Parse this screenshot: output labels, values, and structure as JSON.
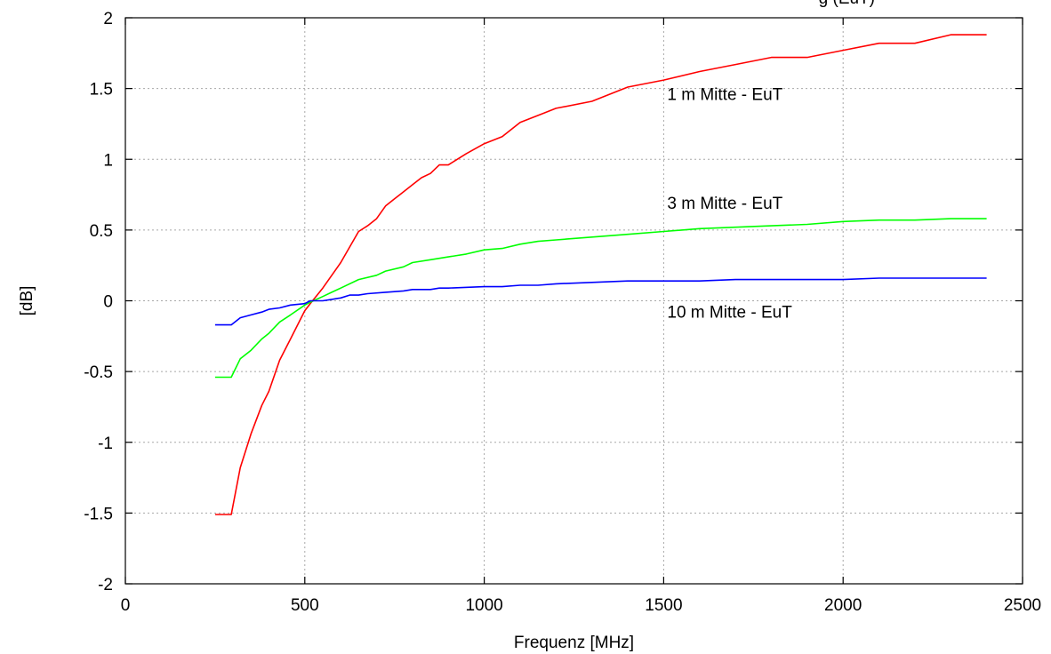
{
  "chart_data": {
    "type": "line",
    "title": "",
    "top_annotation": "g (EuT)",
    "xlabel": "Frequenz [MHz]",
    "ylabel": "[dB]",
    "xlim": [
      0,
      2500
    ],
    "ylim": [
      -2,
      2
    ],
    "x_ticks": [
      0,
      500,
      1000,
      1500,
      2000,
      2500
    ],
    "x_tick_labels": [
      "0",
      "500",
      "1000",
      "1500",
      "2000",
      "2500"
    ],
    "y_ticks": [
      -2,
      -1.5,
      -1,
      -0.5,
      0,
      0.5,
      1,
      1.5,
      2
    ],
    "y_tick_labels": [
      "-2",
      "-1.5",
      "-1",
      "-0.5",
      "0",
      "0.5",
      "1",
      "1.5",
      "2"
    ],
    "grid": true,
    "series": [
      {
        "name": "1 m Mitte - EuT",
        "color": "#ff0000",
        "label_at": [
          1500,
          1.42
        ],
        "points": [
          [
            250,
            -1.51
          ],
          [
            295,
            -1.51
          ],
          [
            320,
            -1.18
          ],
          [
            350,
            -0.94
          ],
          [
            380,
            -0.74
          ],
          [
            400,
            -0.64
          ],
          [
            430,
            -0.42
          ],
          [
            460,
            -0.27
          ],
          [
            500,
            -0.07
          ],
          [
            515,
            -0.02
          ],
          [
            550,
            0.09
          ],
          [
            600,
            0.27
          ],
          [
            650,
            0.49
          ],
          [
            675,
            0.53
          ],
          [
            700,
            0.58
          ],
          [
            725,
            0.67
          ],
          [
            750,
            0.72
          ],
          [
            775,
            0.77
          ],
          [
            800,
            0.82
          ],
          [
            825,
            0.87
          ],
          [
            850,
            0.9
          ],
          [
            875,
            0.96
          ],
          [
            900,
            0.96
          ],
          [
            950,
            1.04
          ],
          [
            1000,
            1.11
          ],
          [
            1050,
            1.16
          ],
          [
            1100,
            1.26
          ],
          [
            1150,
            1.31
          ],
          [
            1200,
            1.36
          ],
          [
            1300,
            1.41
          ],
          [
            1400,
            1.51
          ],
          [
            1500,
            1.56
          ],
          [
            1600,
            1.62
          ],
          [
            1700,
            1.67
          ],
          [
            1800,
            1.72
          ],
          [
            1900,
            1.72
          ],
          [
            2000,
            1.77
          ],
          [
            2100,
            1.82
          ],
          [
            2200,
            1.82
          ],
          [
            2300,
            1.88
          ],
          [
            2400,
            1.88
          ]
        ]
      },
      {
        "name": "3 m Mitte - EuT",
        "color": "#00ff00",
        "label_at": [
          1500,
          0.65
        ],
        "points": [
          [
            250,
            -0.54
          ],
          [
            295,
            -0.54
          ],
          [
            320,
            -0.41
          ],
          [
            350,
            -0.35
          ],
          [
            380,
            -0.27
          ],
          [
            400,
            -0.23
          ],
          [
            430,
            -0.15
          ],
          [
            460,
            -0.1
          ],
          [
            500,
            -0.03
          ],
          [
            515,
            -0.01
          ],
          [
            550,
            0.03
          ],
          [
            575,
            0.06
          ],
          [
            600,
            0.09
          ],
          [
            650,
            0.15
          ],
          [
            700,
            0.18
          ],
          [
            725,
            0.21
          ],
          [
            775,
            0.24
          ],
          [
            800,
            0.27
          ],
          [
            850,
            0.29
          ],
          [
            900,
            0.31
          ],
          [
            950,
            0.33
          ],
          [
            1000,
            0.36
          ],
          [
            1050,
            0.37
          ],
          [
            1100,
            0.4
          ],
          [
            1150,
            0.42
          ],
          [
            1200,
            0.43
          ],
          [
            1300,
            0.45
          ],
          [
            1400,
            0.47
          ],
          [
            1500,
            0.49
          ],
          [
            1600,
            0.51
          ],
          [
            1700,
            0.52
          ],
          [
            1800,
            0.53
          ],
          [
            1900,
            0.54
          ],
          [
            2000,
            0.56
          ],
          [
            2100,
            0.57
          ],
          [
            2200,
            0.57
          ],
          [
            2300,
            0.58
          ],
          [
            2400,
            0.58
          ]
        ]
      },
      {
        "name": "10 m Mitte - EuT",
        "color": "#0000ff",
        "label_at": [
          1500,
          -0.12
        ],
        "points": [
          [
            250,
            -0.17
          ],
          [
            295,
            -0.17
          ],
          [
            320,
            -0.12
          ],
          [
            350,
            -0.1
          ],
          [
            380,
            -0.08
          ],
          [
            400,
            -0.06
          ],
          [
            430,
            -0.05
          ],
          [
            460,
            -0.03
          ],
          [
            500,
            -0.02
          ],
          [
            515,
            0.0
          ],
          [
            550,
            0.0
          ],
          [
            575,
            0.01
          ],
          [
            600,
            0.02
          ],
          [
            625,
            0.04
          ],
          [
            650,
            0.04
          ],
          [
            675,
            0.05
          ],
          [
            725,
            0.06
          ],
          [
            775,
            0.07
          ],
          [
            800,
            0.08
          ],
          [
            850,
            0.08
          ],
          [
            875,
            0.09
          ],
          [
            900,
            0.09
          ],
          [
            1000,
            0.1
          ],
          [
            1050,
            0.1
          ],
          [
            1100,
            0.11
          ],
          [
            1150,
            0.11
          ],
          [
            1200,
            0.12
          ],
          [
            1300,
            0.13
          ],
          [
            1400,
            0.14
          ],
          [
            1500,
            0.14
          ],
          [
            1600,
            0.14
          ],
          [
            1700,
            0.15
          ],
          [
            1800,
            0.15
          ],
          [
            1900,
            0.15
          ],
          [
            2000,
            0.15
          ],
          [
            2100,
            0.16
          ],
          [
            2200,
            0.16
          ],
          [
            2300,
            0.16
          ],
          [
            2400,
            0.16
          ]
        ]
      }
    ]
  }
}
